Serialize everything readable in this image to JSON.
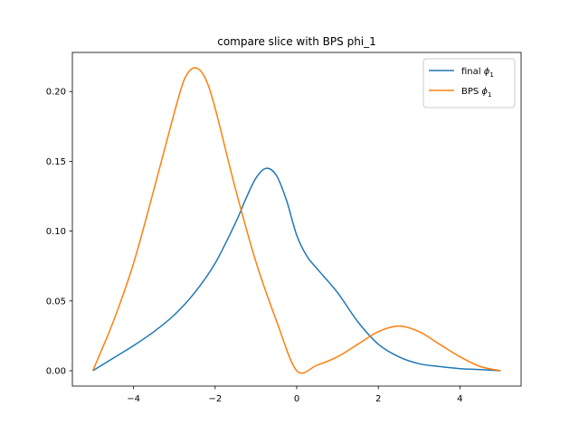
{
  "chart_data": {
    "type": "line",
    "title": "compare slice with BPS phi_1",
    "xlabel": "",
    "ylabel": "",
    "xlim": [
      -5.5,
      5.5
    ],
    "ylim": [
      -0.011,
      0.228
    ],
    "xticks": [
      -4,
      -2,
      0,
      2,
      4
    ],
    "xtick_labels": [
      "−4",
      "−2",
      "0",
      "2",
      "4"
    ],
    "yticks": [
      0.0,
      0.05,
      0.1,
      0.15,
      0.2
    ],
    "ytick_labels": [
      "0.00",
      "0.05",
      "0.10",
      "0.15",
      "0.20"
    ],
    "grid": false,
    "legend_position": "top-right",
    "series": [
      {
        "name": "final",
        "subscript": "1",
        "color": "#1f77b4",
        "x": [
          -5.0,
          -4.5,
          -4.0,
          -3.5,
          -3.0,
          -2.5,
          -2.0,
          -1.5,
          -1.25,
          -1.0,
          -0.75,
          -0.5,
          -0.25,
          0.0,
          0.25,
          0.5,
          1.0,
          1.5,
          2.0,
          2.5,
          3.0,
          3.5,
          4.0,
          4.5,
          5.0
        ],
        "y": [
          0.0,
          0.009,
          0.018,
          0.028,
          0.04,
          0.056,
          0.077,
          0.106,
          0.123,
          0.138,
          0.145,
          0.14,
          0.122,
          0.097,
          0.082,
          0.073,
          0.056,
          0.035,
          0.019,
          0.01,
          0.005,
          0.003,
          0.0015,
          0.0008,
          0.0
        ]
      },
      {
        "name": "BPS",
        "subscript": "1",
        "color": "#ff7f0e",
        "x": [
          -5.0,
          -4.5,
          -4.0,
          -3.5,
          -3.0,
          -2.75,
          -2.5,
          -2.25,
          -2.0,
          -1.5,
          -1.0,
          -0.5,
          0.0,
          0.5,
          1.0,
          1.5,
          2.0,
          2.5,
          3.0,
          3.5,
          4.0,
          4.5,
          5.0
        ],
        "y": [
          0.0,
          0.035,
          0.077,
          0.13,
          0.185,
          0.209,
          0.217,
          0.21,
          0.188,
          0.13,
          0.078,
          0.036,
          0.0,
          0.004,
          0.01,
          0.019,
          0.028,
          0.032,
          0.028,
          0.019,
          0.01,
          0.003,
          0.0
        ]
      }
    ]
  }
}
